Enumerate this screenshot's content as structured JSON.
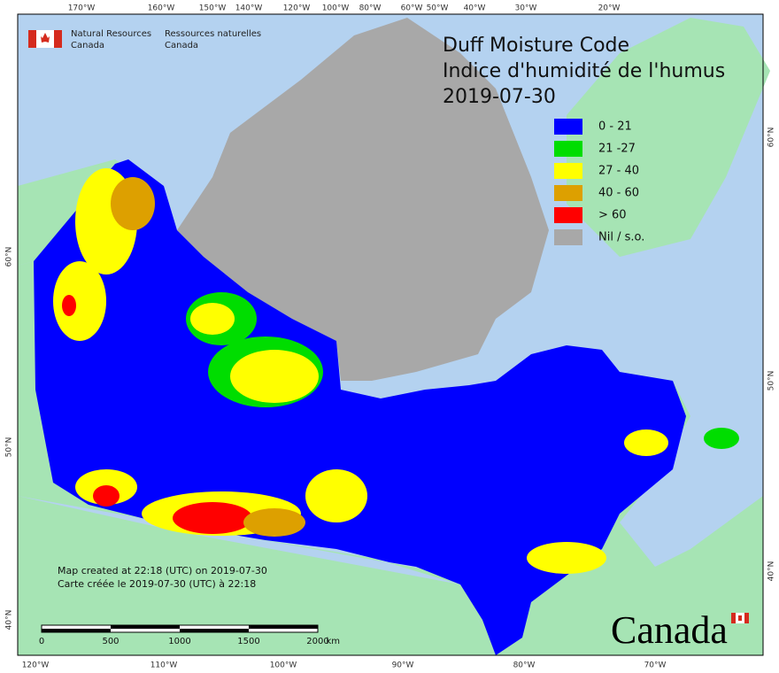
{
  "header": {
    "agency_en": "Natural Resources",
    "agency_en2": "Canada",
    "agency_fr": "Ressources naturelles",
    "agency_fr2": "Canada"
  },
  "title": {
    "line1": "Duff Moisture Code",
    "line2": "Indice d'humidité de l'humus",
    "date": "2019-07-30"
  },
  "legend": [
    {
      "label": "0 - 21",
      "color": "#0000ff"
    },
    {
      "label": "21 -27",
      "color": "#00dd00"
    },
    {
      "label": "27 - 40",
      "color": "#ffff00"
    },
    {
      "label": "40 - 60",
      "color": "#dda000"
    },
    {
      "label": "> 60",
      "color": "#ff0000"
    },
    {
      "label": "Nil / s.o.",
      "color": "#a8a8a8"
    }
  ],
  "top_axis": [
    "170°W",
    "160°W",
    "150°W",
    "140°W",
    "120°W",
    "100°W",
    "80°W",
    "60°W",
    "50°W",
    "40°W",
    "30°W",
    "20°W"
  ],
  "bottom_axis": [
    "120°W",
    "110°W",
    "100°W",
    "90°W",
    "80°W",
    "70°W"
  ],
  "left_axis": [
    "60°N",
    "50°N",
    "40°N"
  ],
  "right_axis": [
    "60°N",
    "50°N",
    "40°N"
  ],
  "note": {
    "line1": "Map created at 22:18 (UTC) on 2019-07-30",
    "line2": "Carte créée le 2019-07-30 (UTC) à 22:18"
  },
  "scale": [
    "0",
    "500",
    "1000",
    "1500",
    "2000",
    "km"
  ],
  "wordmark": "Canada"
}
